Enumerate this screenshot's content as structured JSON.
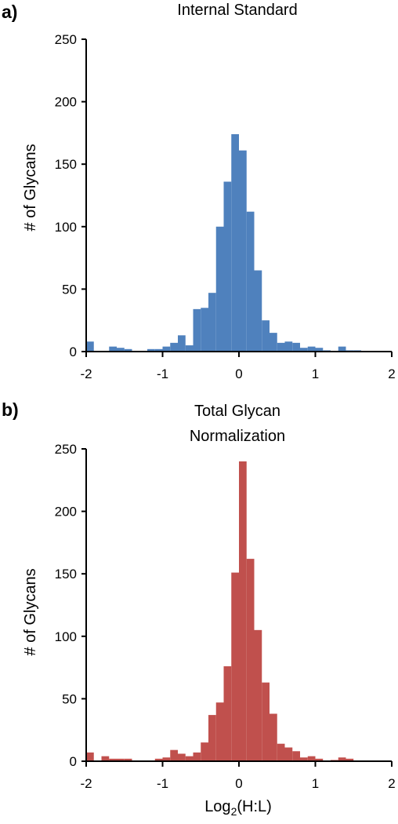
{
  "chart_data": [
    {
      "type": "bar",
      "panel_label": "a)",
      "title_lines": [
        "Internal Standard"
      ],
      "xlabel": "",
      "ylabel": "# of Glycans",
      "xlim": [
        -2,
        2
      ],
      "ylim": [
        0,
        250
      ],
      "x_ticks": [
        "-2",
        "-1",
        "0",
        "1",
        "2"
      ],
      "y_ticks": [
        "0",
        "50",
        "100",
        "150",
        "200",
        "250"
      ],
      "bin_width": 0.1,
      "color": "#4f81bd",
      "x": [
        -1.95,
        -1.85,
        -1.75,
        -1.65,
        -1.55,
        -1.45,
        -1.35,
        -1.25,
        -1.15,
        -1.05,
        -0.95,
        -0.85,
        -0.75,
        -0.65,
        -0.55,
        -0.45,
        -0.35,
        -0.25,
        -0.15,
        -0.05,
        0.05,
        0.15,
        0.25,
        0.35,
        0.45,
        0.55,
        0.65,
        0.75,
        0.85,
        0.95,
        1.05,
        1.15,
        1.25,
        1.35,
        1.45,
        1.55,
        1.65,
        1.75,
        1.85,
        1.95
      ],
      "values": [
        8,
        0,
        0,
        4,
        3,
        2,
        0,
        0,
        2,
        2,
        4,
        7,
        13,
        5,
        34,
        35,
        47,
        100,
        136,
        174,
        161,
        112,
        65,
        25,
        15,
        7,
        8,
        7,
        3,
        4,
        3,
        1,
        0,
        4,
        1,
        1,
        0,
        0,
        0,
        0
      ]
    },
    {
      "type": "bar",
      "panel_label": "b)",
      "title_lines": [
        "Total Glycan",
        "Normalization"
      ],
      "xlabel": "Log2(H:L)",
      "xlabel_main": "Log",
      "xlabel_sub": "2",
      "xlabel_rest": "(H:L)",
      "ylabel": "# of Glycans",
      "xlim": [
        -2,
        2
      ],
      "ylim": [
        0,
        250
      ],
      "x_ticks": [
        "-2",
        "-1",
        "0",
        "1",
        "2"
      ],
      "y_ticks": [
        "0",
        "50",
        "100",
        "150",
        "200",
        "250"
      ],
      "bin_width": 0.1,
      "color": "#c0504d",
      "x": [
        -1.95,
        -1.85,
        -1.75,
        -1.65,
        -1.55,
        -1.45,
        -1.35,
        -1.25,
        -1.15,
        -1.05,
        -0.95,
        -0.85,
        -0.75,
        -0.65,
        -0.55,
        -0.45,
        -0.35,
        -0.25,
        -0.15,
        -0.05,
        0.05,
        0.15,
        0.25,
        0.35,
        0.45,
        0.55,
        0.65,
        0.75,
        0.85,
        0.95,
        1.05,
        1.15,
        1.25,
        1.35,
        1.45,
        1.55,
        1.65,
        1.75,
        1.85,
        1.95
      ],
      "values": [
        7,
        0,
        4,
        2,
        2,
        2,
        0,
        0,
        0,
        2,
        3,
        9,
        6,
        4,
        7,
        15,
        37,
        47,
        76,
        151,
        240,
        162,
        105,
        63,
        38,
        14,
        11,
        8,
        3,
        4,
        2,
        0,
        1,
        3,
        2,
        0,
        0,
        0,
        0,
        0
      ]
    }
  ]
}
